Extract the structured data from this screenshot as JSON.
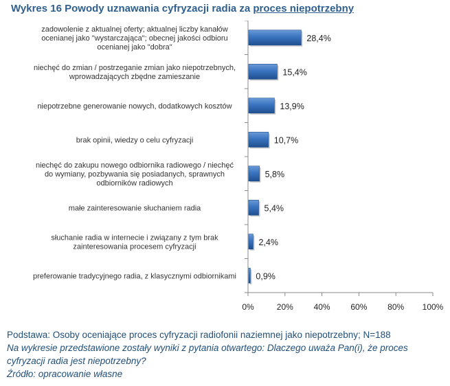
{
  "header": {
    "title_prefix": "Wykres 16 Powody uznawania cyfryzacji radia za",
    "title_emphasis": "proces niepotrzebny"
  },
  "chart_data": {
    "type": "bar",
    "orientation": "horizontal",
    "categories": [
      [
        "zadowolenie z aktualnej oferty; aktualnej liczby kanałów",
        "ocenianej jako \"wystarczająca\"; obecnej jakości odbioru",
        "ocenianej jako \"dobra\""
      ],
      [
        "niechęć do zmian / postrzeganie zmian jako niepotrzebnych,",
        "wprowadzających zbędne zamieszanie"
      ],
      [
        "niepotrzebne generowanie nowych, dodatkowych kosztów"
      ],
      [
        "brak opinii, wiedzy o celu cyfryzacji"
      ],
      [
        "niechęć do zakupu nowego odbiornika radiowego / niechęć",
        "do wymiany, pozbywania się posiadanych, sprawnych",
        "odbiorników radiowych"
      ],
      [
        "małe zainteresowanie słuchaniem radia"
      ],
      [
        "słuchanie radia w internecie i związany z tym brak",
        "zainteresowania procesem cyfryzacji"
      ],
      [
        "preferowanie tradycyjnego radia, z klasycznymi odbiornikami"
      ]
    ],
    "values": [
      28.4,
      15.4,
      13.9,
      10.7,
      5.8,
      5.4,
      2.4,
      0.9
    ],
    "value_labels": [
      "28,4%",
      "15,4%",
      "13,9%",
      "10,7%",
      "5,8%",
      "5,4%",
      "2,4%",
      "0,9%"
    ],
    "xlim": [
      0,
      100
    ],
    "ticks": [
      0,
      20,
      40,
      60,
      80,
      100
    ],
    "tick_labels": [
      "0%",
      "20%",
      "40%",
      "60%",
      "80%",
      "100%"
    ],
    "bar_color": "#3a74bf",
    "bar_color_light": "#6b9ad6",
    "bar_color_dark": "#1f4f8f"
  },
  "footer": {
    "basis": "Podstawa: Osoby oceniające proces cyfryzacji radiofonii naziemnej jako niepotrzebny; N=188",
    "note": "Na wykresie przedstawione zostały wyniki z pytania otwartego: Dlaczego uważa Pan(i), że proces cyfryzacji radia jest niepotrzebny?",
    "source": "Źródło: opracowanie własne"
  }
}
